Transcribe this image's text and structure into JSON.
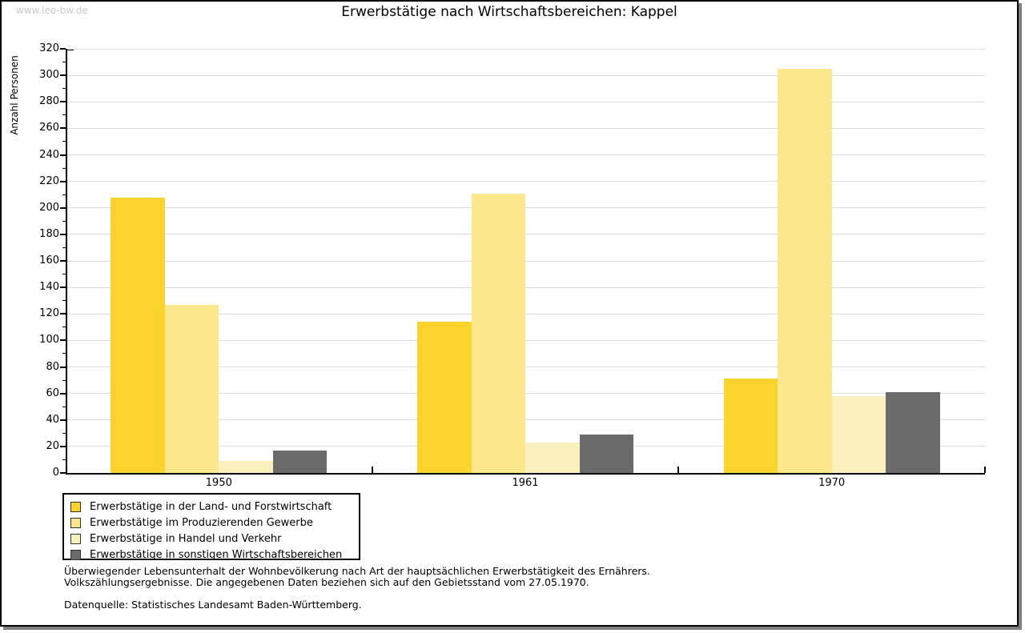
{
  "watermark": "www.leo-bw.de",
  "title": "Erwerbstätige nach Wirtschaftsbereichen: Kappel",
  "chart_data": {
    "type": "bar",
    "title": "Erwerbstätige nach Wirtschaftsbereichen: Kappel",
    "xlabel": "",
    "ylabel": "Anzahl Personen",
    "ylim": [
      0,
      320
    ],
    "ytick_step": 20,
    "ytick_minor_step": 10,
    "grid": true,
    "legend_position": "bottom-left",
    "categories": [
      "1950",
      "1961",
      "1970"
    ],
    "series": [
      {
        "name": "Erwerbstätige in der Land- und Forstwirtschaft",
        "color": "#fcd32d",
        "values": [
          208,
          114,
          71
        ]
      },
      {
        "name": "Erwerbstätige im Produzierenden Gewerbe",
        "color": "#fde78c",
        "values": [
          127,
          211,
          305
        ]
      },
      {
        "name": "Erwerbstätige in Handel und Verkehr",
        "color": "#faf0be",
        "values": [
          9,
          23,
          58
        ]
      },
      {
        "name": "Erwerbstätige in sonstigen Wirtschaftsbereichen",
        "color": "#6b6b6b",
        "values": [
          17,
          29,
          61
        ]
      }
    ]
  },
  "footer": {
    "line1": "Überwiegender Lebensunterhalt der Wohnbevölkerung nach Art der hauptsächlichen Erwerbstätigkeit des Ernährers.",
    "line2": "Volkszählungsergebnisse. Die angegebenen Daten beziehen sich auf den Gebietsstand vom 27.05.1970.",
    "source": "Datenquelle: Statistisches Landesamt Baden-Württemberg."
  },
  "colors": {
    "grid": "#dcdcdc",
    "axis": "#000000",
    "watermark": "#c8c8c8",
    "frame_shadow": "#808080"
  }
}
